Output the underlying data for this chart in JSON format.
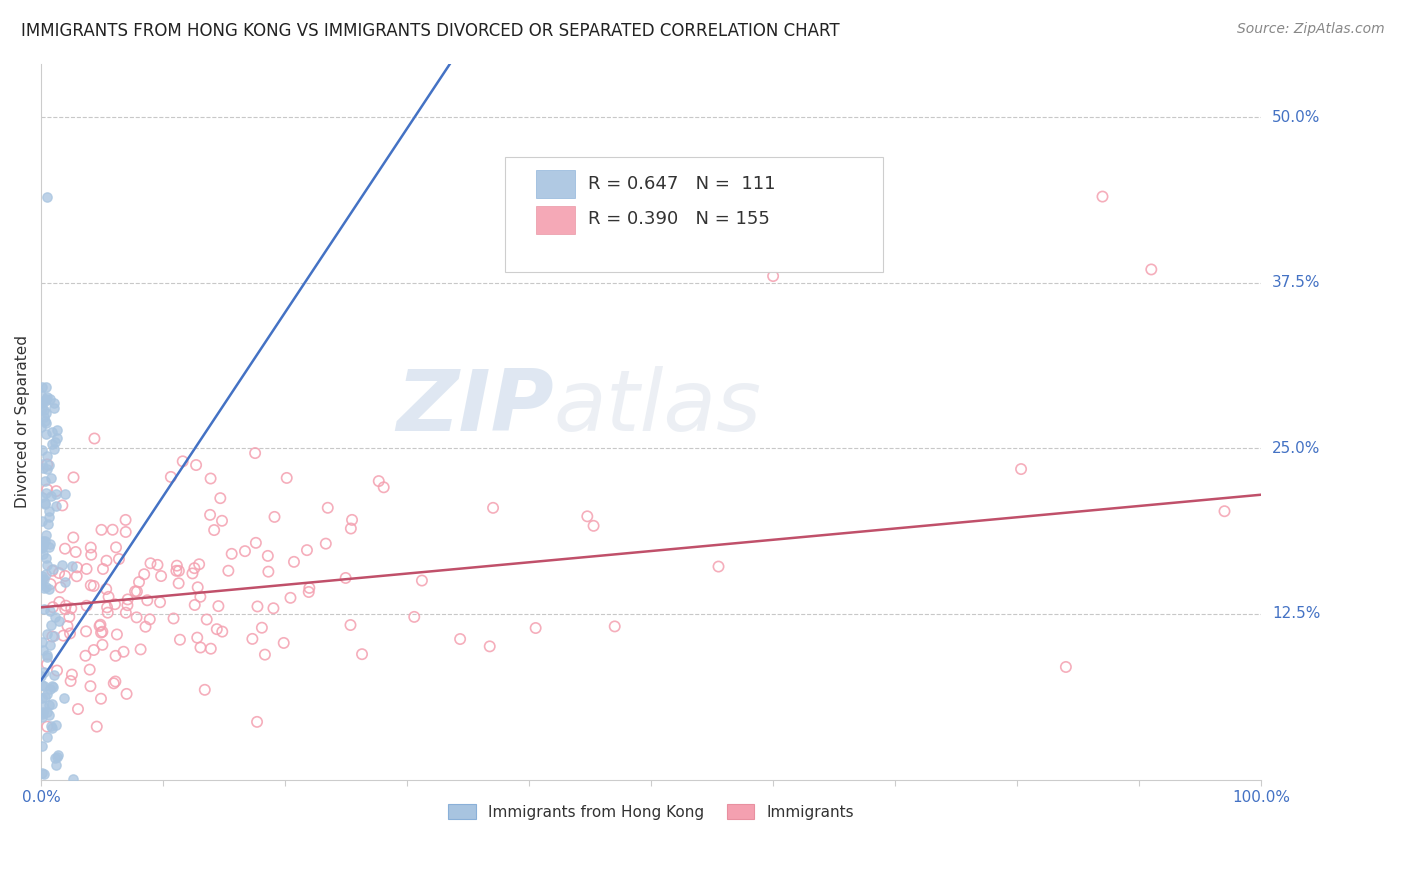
{
  "title": "IMMIGRANTS FROM HONG KONG VS IMMIGRANTS DIVORCED OR SEPARATED CORRELATION CHART",
  "source_text": "Source: ZipAtlas.com",
  "ylabel": "Divorced or Separated",
  "xlim": [
    0.0,
    1.0
  ],
  "ylim": [
    0.0,
    0.54
  ],
  "yticks": [
    0.125,
    0.25,
    0.375,
    0.5
  ],
  "yticklabels": [
    "12.5%",
    "25.0%",
    "37.5%",
    "50.0%"
  ],
  "grid_color": "#c8c8c8",
  "background_color": "#ffffff",
  "watermark_zip": "ZIP",
  "watermark_atlas": "atlas",
  "legend_R1": "R = 0.647",
  "legend_N1": "N =  111",
  "legend_R2": "R = 0.390",
  "legend_N2": "N = 155",
  "blue_color": "#a8c4e0",
  "pink_color": "#f4a0b0",
  "blue_line_color": "#4472c4",
  "pink_line_color": "#c0506a",
  "blue_trendline_x": [
    0.0,
    0.335
  ],
  "blue_trendline_y": [
    0.075,
    0.54
  ],
  "pink_trendline_x": [
    0.0,
    1.0
  ],
  "pink_trendline_y": [
    0.13,
    0.215
  ],
  "figsize": [
    14.06,
    8.92
  ],
  "dpi": 100
}
